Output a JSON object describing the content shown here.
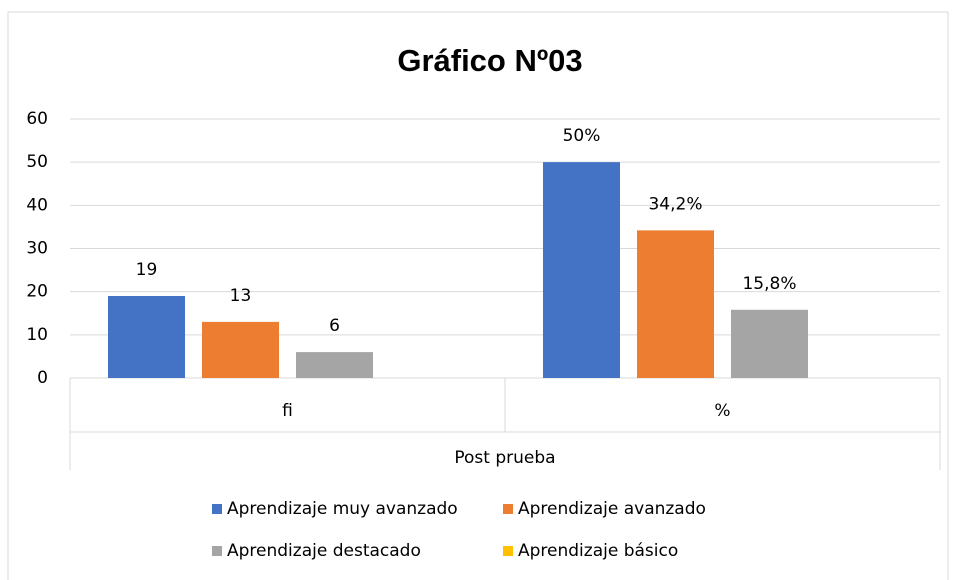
{
  "chart_data": {
    "type": "bar",
    "title": "Gráfico Nº03",
    "categories": [
      "fi",
      "%"
    ],
    "x_group_label": "Post prueba",
    "series": [
      {
        "name": "Aprendizaje muy avanzado",
        "color": "#4472c4",
        "values": [
          19,
          50
        ],
        "value_labels": [
          "19",
          "50%"
        ]
      },
      {
        "name": "Aprendizaje avanzado",
        "color": "#ed7d31",
        "values": [
          13,
          34.2
        ],
        "value_labels": [
          "13",
          "34,2%"
        ]
      },
      {
        "name": "Aprendizaje destacado",
        "color": "#a5a5a5",
        "values": [
          6,
          15.8
        ],
        "value_labels": [
          "6",
          "15,8%"
        ]
      },
      {
        "name": "Aprendizaje básico",
        "color": "#ffc000",
        "values": [
          null,
          null
        ]
      }
    ],
    "ylim": [
      0,
      60
    ],
    "yticks": [
      0,
      10,
      20,
      30,
      40,
      50,
      60
    ],
    "grid": true,
    "legend": "bottom"
  }
}
